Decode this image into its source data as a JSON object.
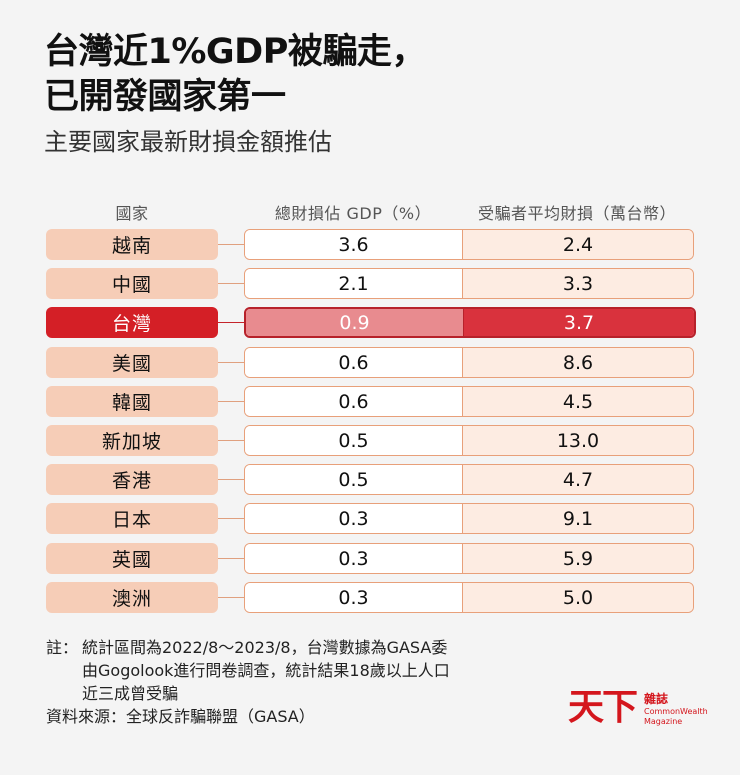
{
  "title_lines": [
    "台灣近1%GDP被騙走，",
    "已開發國家第一"
  ],
  "subtitle": "主要國家最新財損金額推估",
  "chart_data": {
    "type": "table",
    "columns": [
      "國家",
      "總財損佔 GDP（%）",
      "受騙者平均財損（萬台幣）"
    ],
    "rows": [
      {
        "country": "越南",
        "gdp_pct": "3.6",
        "avg_loss": "2.4"
      },
      {
        "country": "中國",
        "gdp_pct": "2.1",
        "avg_loss": "3.3"
      },
      {
        "country": "台灣",
        "gdp_pct": "0.9",
        "avg_loss": "3.7",
        "highlight": true
      },
      {
        "country": "美國",
        "gdp_pct": "0.6",
        "avg_loss": "8.6"
      },
      {
        "country": "韓國",
        "gdp_pct": "0.6",
        "avg_loss": "4.5"
      },
      {
        "country": "新加坡",
        "gdp_pct": "0.5",
        "avg_loss": "13.0"
      },
      {
        "country": "香港",
        "gdp_pct": "0.5",
        "avg_loss": "4.7"
      },
      {
        "country": "日本",
        "gdp_pct": "0.3",
        "avg_loss": "9.1"
      },
      {
        "country": "英國",
        "gdp_pct": "0.3",
        "avg_loss": "5.9"
      },
      {
        "country": "澳洲",
        "gdp_pct": "0.3",
        "avg_loss": "5.0"
      }
    ],
    "highlight_color": "#d41f26",
    "label_fill": "#f6cdb7"
  },
  "note": {
    "label": "註：",
    "lines": [
      "統計區間為2022/8～2023/8，台灣數據為GASA委",
      "由Gogolook進行問卷調查，統計結果18歲以上人口",
      "近三成曾受騙"
    ]
  },
  "source": "資料來源：全球反詐騙聯盟（GASA）",
  "logo": {
    "main": "天下",
    "zh": "雜誌",
    "en_line1": "CommonWealth",
    "en_line2": "Magazine",
    "color": "#d4161d"
  }
}
